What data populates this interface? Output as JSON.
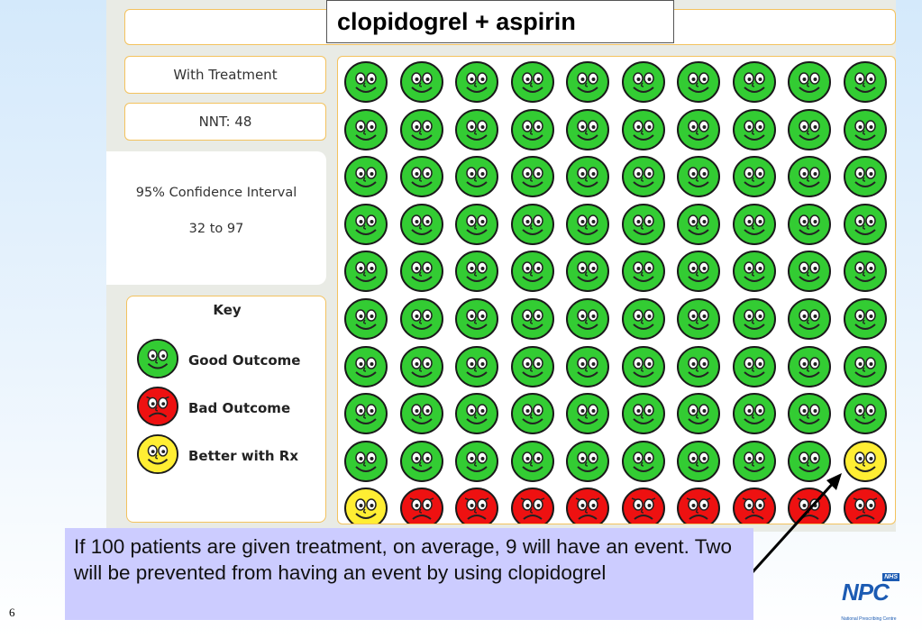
{
  "title": "clopidogrel + aspirin",
  "treatment_label": "With Treatment",
  "nnt_label": "NNT: 48",
  "confidence": {
    "title": "95% Confidence Interval",
    "value": "32 to 97"
  },
  "key": {
    "title": "Key",
    "items": [
      {
        "label": "Good Outcome",
        "type": "good"
      },
      {
        "label": "Bad Outcome",
        "type": "bad"
      },
      {
        "label": "Better with Rx",
        "type": "better"
      }
    ]
  },
  "grid": {
    "rows": 10,
    "cols": 10,
    "colors": {
      "good": "#33cc33",
      "bad": "#ee1111",
      "better": "#ffee33"
    },
    "cells": [
      [
        "good",
        "good",
        "good",
        "good",
        "good",
        "good",
        "good",
        "good",
        "good",
        "good"
      ],
      [
        "good",
        "good",
        "good",
        "good",
        "good",
        "good",
        "good",
        "good",
        "good",
        "good"
      ],
      [
        "good",
        "good",
        "good",
        "good",
        "good",
        "good",
        "good",
        "good",
        "good",
        "good"
      ],
      [
        "good",
        "good",
        "good",
        "good",
        "good",
        "good",
        "good",
        "good",
        "good",
        "good"
      ],
      [
        "good",
        "good",
        "good",
        "good",
        "good",
        "good",
        "good",
        "good",
        "good",
        "good"
      ],
      [
        "good",
        "good",
        "good",
        "good",
        "good",
        "good",
        "good",
        "good",
        "good",
        "good"
      ],
      [
        "good",
        "good",
        "good",
        "good",
        "good",
        "good",
        "good",
        "good",
        "good",
        "good"
      ],
      [
        "good",
        "good",
        "good",
        "good",
        "good",
        "good",
        "good",
        "good",
        "good",
        "good"
      ],
      [
        "good",
        "good",
        "good",
        "good",
        "good",
        "good",
        "good",
        "good",
        "good",
        "better"
      ],
      [
        "better",
        "bad",
        "bad",
        "bad",
        "bad",
        "bad",
        "bad",
        "bad",
        "bad",
        "bad"
      ]
    ]
  },
  "caption": "If 100 patients are given treatment, on average, 9 will have an event.  Two will be prevented from having an event by using clopidogrel",
  "slide_number": "6",
  "logo": {
    "badge": "NHS",
    "name": "NPC",
    "subtitle": "National Prescribing Centre"
  }
}
